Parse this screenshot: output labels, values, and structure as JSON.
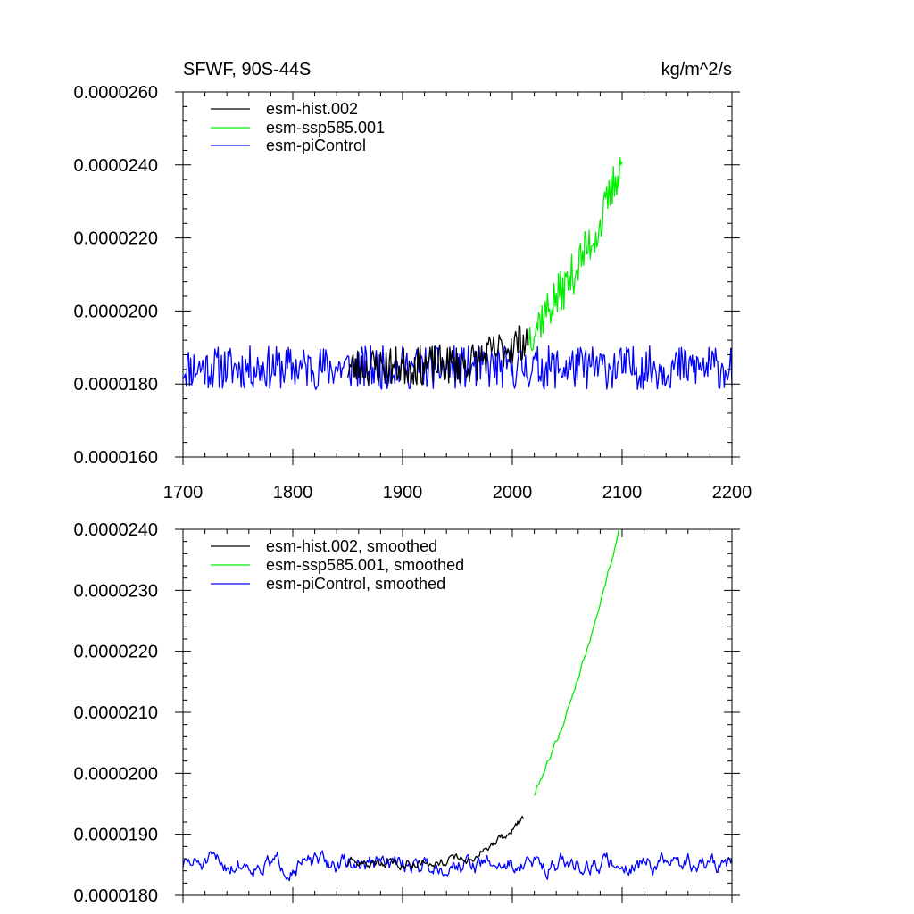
{
  "chart_data": [
    {
      "type": "line",
      "id": "raw",
      "title_left": "SFWF, 90S-44S",
      "title_right": "kg/m^2/s",
      "xlim": [
        1700,
        2200
      ],
      "x_ticks": [
        1700,
        1800,
        1900,
        2000,
        2100,
        2200
      ],
      "x_tick_labels": [
        "1700",
        "1800",
        "1900",
        "2000",
        "2100",
        "2200"
      ],
      "ylim": [
        1.6e-05,
        2.6e-05
      ],
      "y_ticks": [
        1.6e-05,
        1.8e-05,
        2e-05,
        2.2e-05,
        2.4e-05,
        2.6e-05
      ],
      "y_tick_labels": [
        "0.0000160",
        "0.0000180",
        "0.0000200",
        "0.0000220",
        "0.0000240",
        "0.0000260"
      ],
      "legend": [
        "esm-hist.002",
        "esm-ssp585.001",
        "esm-piControl"
      ],
      "series": [
        {
          "name": "esm-piControl",
          "color": "#0000ff",
          "x_start": 1700,
          "x_end": 2200,
          "base": 1.845,
          "trend": [],
          "amplitude": 0.06,
          "seed": 11
        },
        {
          "name": "esm-hist.002",
          "color": "#000000",
          "x_start": 1850,
          "x_end": 2014,
          "base": 1.845,
          "trend": [
            [
              1850,
              0.0
            ],
            [
              1960,
              0.01
            ],
            [
              2014,
              0.08
            ]
          ],
          "amplitude": 0.055,
          "seed": 23
        },
        {
          "name": "esm-ssp585.001",
          "color": "#00ee00",
          "x_start": 2015,
          "x_end": 2100,
          "base": 1.935,
          "trend": [
            [
              2015,
              0.0
            ],
            [
              2050,
              0.14
            ],
            [
              2080,
              0.3
            ],
            [
              2100,
              0.48
            ]
          ],
          "amplitude": 0.06,
          "seed": 37
        }
      ],
      "value_scale": 1e-05
    },
    {
      "type": "line",
      "id": "smoothed",
      "xlim": [
        1700,
        2200
      ],
      "x_ticks": [
        1700,
        1800,
        1900,
        2000,
        2100,
        2200
      ],
      "ylim": [
        1.8e-05,
        2.4e-05
      ],
      "y_ticks": [
        1.8e-05,
        1.9e-05,
        2e-05,
        2.1e-05,
        2.2e-05,
        2.3e-05,
        2.4e-05
      ],
      "y_tick_labels": [
        "0.0000180",
        "0.0000190",
        "0.0000200",
        "0.0000210",
        "0.0000220",
        "0.0000230",
        "0.0000240"
      ],
      "legend": [
        "esm-hist.002, smoothed",
        "esm-ssp585.001, smoothed",
        "esm-piControl, smoothed"
      ],
      "series": [
        {
          "name": "esm-piControl, smoothed",
          "color": "#0000ff",
          "x_start": 1700,
          "x_end": 2200,
          "base": 1.851,
          "trend": [],
          "amplitude": 0.018,
          "seed": 51
        },
        {
          "name": "esm-hist.002, smoothed",
          "color": "#000000",
          "x_start": 1850,
          "x_end": 2010,
          "base": 1.85,
          "trend": [
            [
              1850,
              0.0
            ],
            [
              1960,
              0.01
            ],
            [
              1985,
              0.035
            ],
            [
              2010,
              0.07
            ]
          ],
          "amplitude": 0.01,
          "seed": 63
        },
        {
          "name": "esm-ssp585.001, smoothed",
          "color": "#00ee00",
          "x_start": 2020,
          "x_end": 2097,
          "base": 1.965,
          "trend": [
            [
              2020,
              0.0
            ],
            [
              2045,
              0.11
            ],
            [
              2070,
              0.25
            ],
            [
              2097,
              0.43
            ]
          ],
          "amplitude": 0.006,
          "seed": 79
        }
      ],
      "value_scale": 1e-05
    }
  ]
}
